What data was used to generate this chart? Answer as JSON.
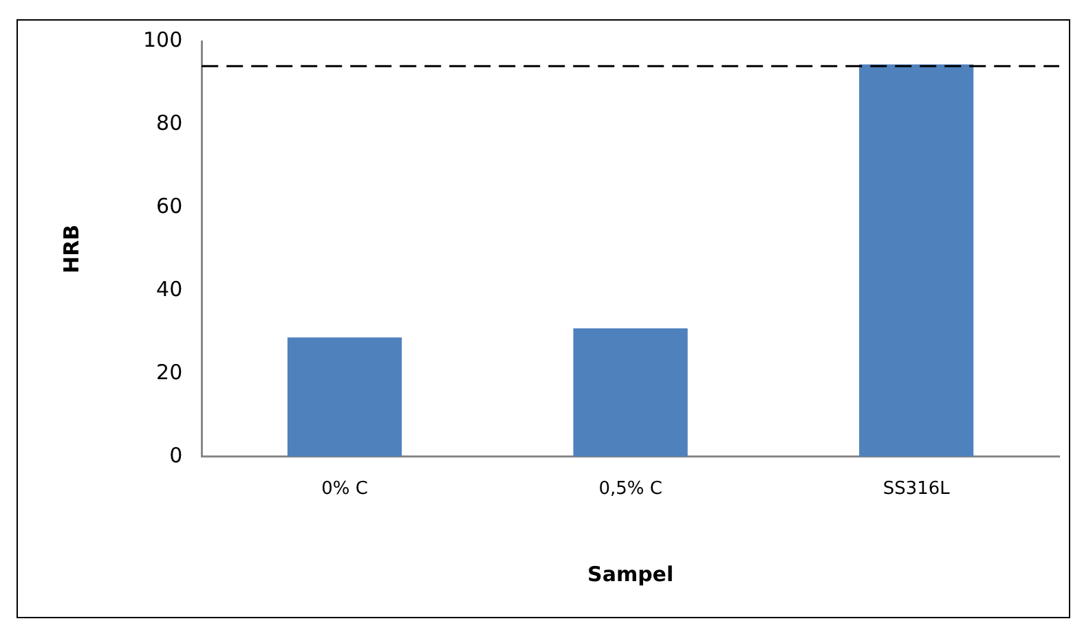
{
  "chart_data": {
    "type": "bar",
    "xlabel": "Sampel",
    "ylabel": "HRB",
    "categories": [
      "0% C",
      "0,5% C",
      "SS316L"
    ],
    "values": [
      28.7,
      30.9,
      94.4
    ],
    "color": "#4f81bd",
    "ylim": [
      0,
      100
    ],
    "yticks": [
      0,
      20,
      40,
      60,
      80,
      100
    ],
    "grid": false,
    "legend": false,
    "ref_lines": [
      {
        "axis": "y",
        "value": 94,
        "color": "#000000",
        "line_style": "dashed"
      }
    ]
  }
}
